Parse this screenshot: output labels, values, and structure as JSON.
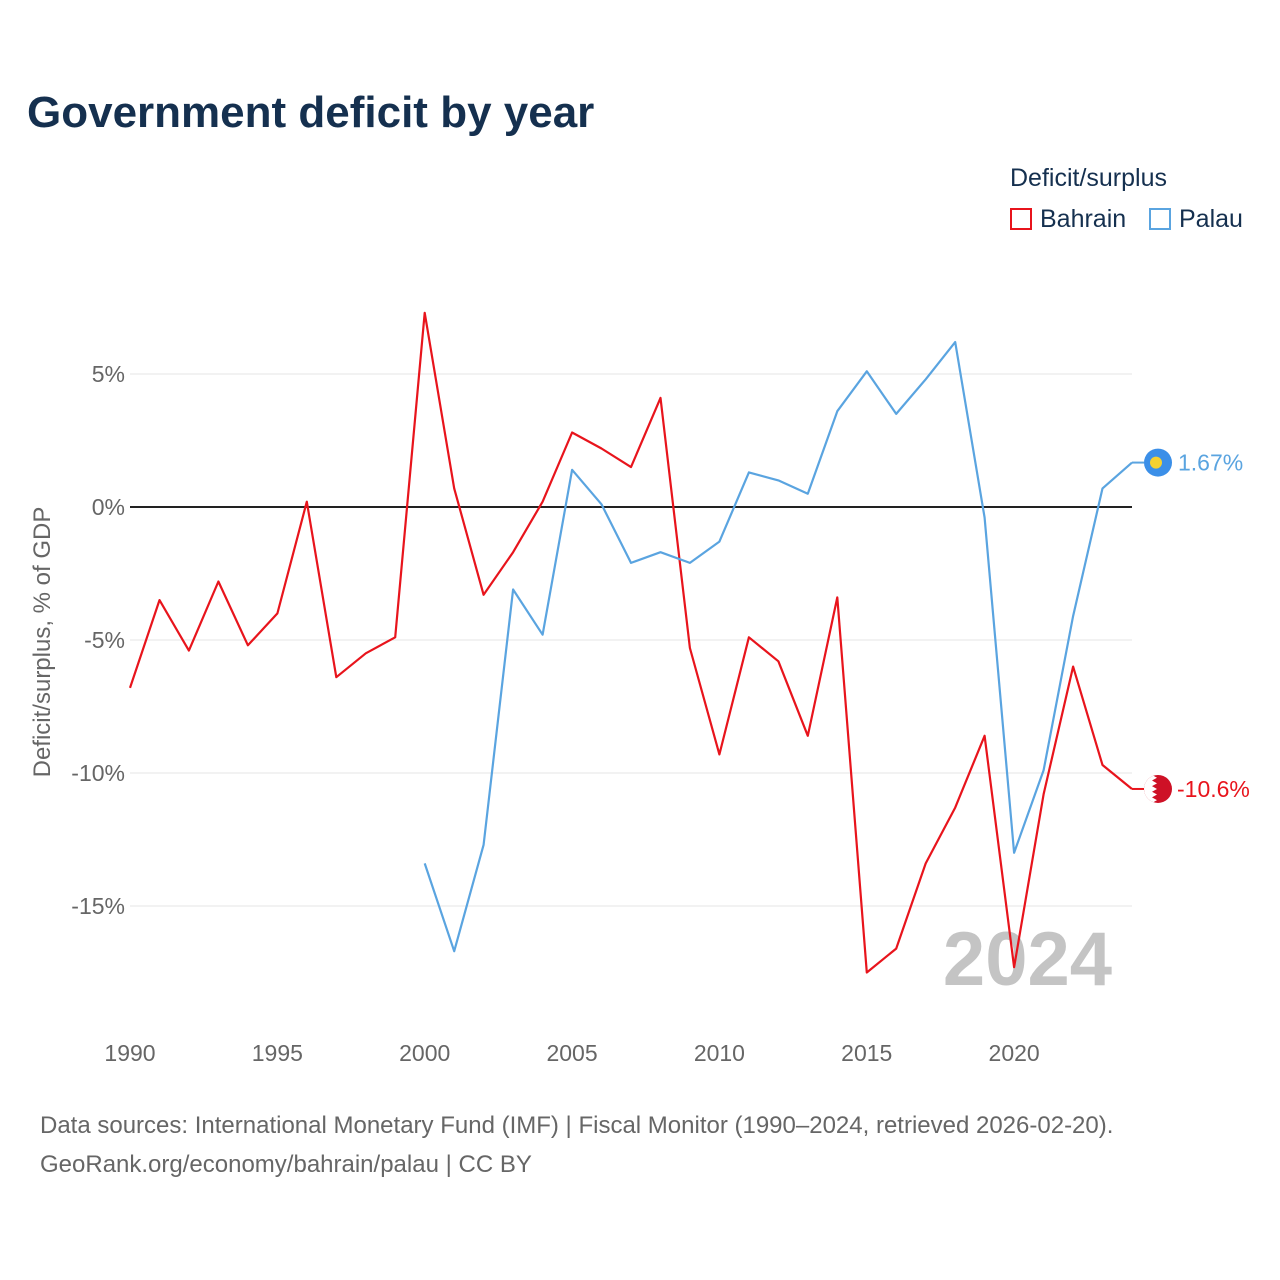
{
  "title": "Government deficit by year",
  "legend": {
    "title": "Deficit/surplus",
    "items": [
      {
        "label": "Bahrain",
        "color": "#e8141c"
      },
      {
        "label": "Palau",
        "color": "#5aa4e0"
      }
    ]
  },
  "year_watermark": "2024",
  "source_line1": "Data sources: International Monetary Fund (IMF) | Fiscal Monitor (1990–2024, retrieved 2026-02-20).",
  "source_line2": "GeoRank.org/economy/bahrain/palau | CC BY",
  "end_labels": {
    "bahrain": "-10.6%",
    "palau": "1.67%"
  },
  "chart_data": {
    "type": "line",
    "title": "Government deficit by year",
    "ylabel": "Deficit/surplus, % of GDP",
    "xlabel": "",
    "x_ticks": [
      "1990",
      "1995",
      "2000",
      "2005",
      "2010",
      "2015",
      "2020"
    ],
    "y_ticks": [
      "5%",
      "0%",
      "-5%",
      "-10%",
      "-15%"
    ],
    "y_tick_values": [
      5,
      0,
      -5,
      -10,
      -15
    ],
    "xlim": [
      1990,
      2024
    ],
    "ylim": [
      -19,
      8
    ],
    "series": [
      {
        "name": "Bahrain",
        "color": "#e8141c",
        "x": [
          1990,
          1991,
          1992,
          1993,
          1994,
          1995,
          1996,
          1997,
          1998,
          1999,
          2000,
          2001,
          2002,
          2003,
          2004,
          2005,
          2006,
          2007,
          2008,
          2009,
          2010,
          2011,
          2012,
          2013,
          2014,
          2015,
          2016,
          2017,
          2018,
          2019,
          2020,
          2021,
          2022,
          2023,
          2024
        ],
        "values": [
          -6.8,
          -3.5,
          -5.4,
          -2.8,
          -5.2,
          -4.0,
          0.2,
          -6.4,
          -5.5,
          -4.9,
          7.3,
          0.7,
          -3.3,
          -1.7,
          0.2,
          2.8,
          2.2,
          1.5,
          4.1,
          -5.3,
          -9.3,
          -4.9,
          -5.8,
          -8.6,
          -3.4,
          -17.5,
          -16.6,
          -13.4,
          -11.3,
          -8.6,
          -17.3,
          -10.8,
          -6.0,
          -9.7,
          -10.6
        ]
      },
      {
        "name": "Palau",
        "color": "#5aa4e0",
        "x": [
          2000,
          2001,
          2002,
          2003,
          2004,
          2005,
          2006,
          2007,
          2008,
          2009,
          2010,
          2011,
          2012,
          2013,
          2014,
          2015,
          2016,
          2017,
          2018,
          2019,
          2020,
          2021,
          2022,
          2023,
          2024
        ],
        "values": [
          -13.4,
          -16.7,
          -12.7,
          -3.1,
          -4.8,
          1.4,
          0.1,
          -2.1,
          -1.7,
          -2.1,
          -1.3,
          1.3,
          1.0,
          0.5,
          3.6,
          5.1,
          3.5,
          4.8,
          6.2,
          -0.4,
          -13.0,
          -9.9,
          -4.1,
          0.7,
          1.67
        ]
      }
    ]
  }
}
